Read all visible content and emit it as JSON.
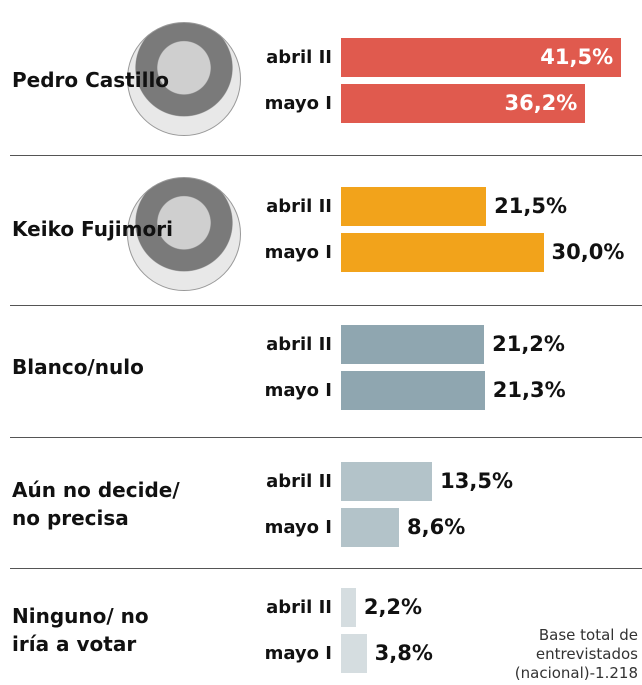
{
  "chart_data": {
    "type": "bar",
    "categories": [
      "Pedro Castillo",
      "Keiko Fujimori",
      "Blanco/nulo",
      "Aún no decide/ no precisa",
      "Ninguno/ no iría a votar"
    ],
    "category_colors": [
      "#e05a4e",
      "#f2a31b",
      "#8fa6b0",
      "#b3c3c9",
      "#d5dde0"
    ],
    "series": [
      {
        "name": "abril II",
        "values": [
          41.5,
          21.5,
          21.2,
          13.5,
          2.2
        ],
        "value_labels": [
          "41,5%",
          "21,5%",
          "21,2%",
          "13,5%",
          "2,2%"
        ]
      },
      {
        "name": "mayo I",
        "values": [
          36.2,
          30.0,
          21.3,
          8.6,
          3.8
        ],
        "value_labels": [
          "36,2%",
          "30,0%",
          "21,3%",
          "8,6%",
          "3,8%"
        ]
      }
    ],
    "note": "Base total de entrevistados (nacional)-1.218"
  }
}
